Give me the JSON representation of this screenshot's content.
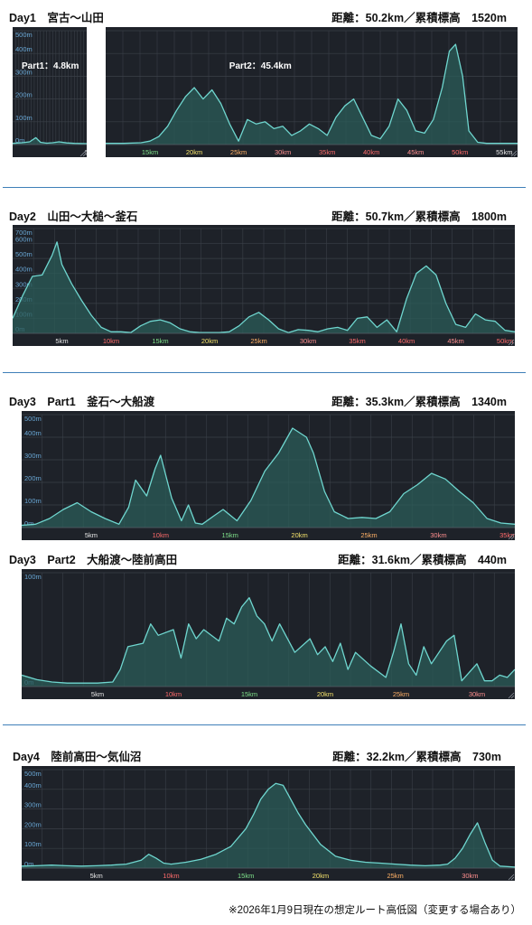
{
  "days": [
    {
      "title": "Day1　宮古〜山田",
      "stats": "距離：50.2km／累積標高　1520m"
    },
    {
      "title": "Day2　山田〜大槌〜釜石",
      "stats": "距離：50.7km／累積標高　1800m"
    },
    {
      "title": "Day3　Part1　釜石〜大船渡",
      "stats": "距離：35.3km／累積標高　1340m"
    },
    {
      "title": "Day3　Part2　大船渡〜陸前高田",
      "stats": "距離：31.6km／累積標高　440m"
    },
    {
      "title": "Day4　陸前高田〜気仙沼",
      "stats": "距離：32.2km／累積標高　730m"
    }
  ],
  "footnote": "※2026年1月9日現在の想定ルート高低図（変更する場合あり）",
  "colors": {
    "background": "#1e2229",
    "line": "#6fd6cf",
    "fill": "#2b5c58",
    "grid": "#3a4048",
    "label": "#6aa8d6",
    "divider": "#3f7fb8"
  },
  "chart_data": [
    {
      "type": "area",
      "title": "Day1 Part1",
      "annotation": "Part1：4.8km",
      "xlim": [
        0,
        4.8
      ],
      "ylim": [
        0,
        500
      ],
      "yticks": [
        0,
        100,
        200,
        300,
        400,
        500
      ],
      "ytick_labels": [
        "0m",
        "100m",
        "200m",
        "300m",
        "400m",
        "500m"
      ],
      "xticks": [
        4.8
      ],
      "xtick_labels": [
        "5"
      ],
      "x": [
        0,
        0.6,
        1.1,
        1.5,
        1.8,
        2.2,
        2.6,
        3.0,
        3.5,
        4.0,
        4.8
      ],
      "y": [
        5,
        8,
        12,
        30,
        10,
        6,
        8,
        12,
        7,
        5,
        4
      ]
    },
    {
      "type": "area",
      "title": "Day1 Part2",
      "annotation": "Part2：45.4km",
      "xlim": [
        10,
        56.5
      ],
      "ylim": [
        0,
        500
      ],
      "yticks": [
        0,
        100,
        200,
        300,
        400,
        500
      ],
      "xticks": [
        15,
        20,
        25,
        30,
        35,
        40,
        45,
        50,
        55
      ],
      "xtick_labels": [
        "15km",
        "20km",
        "25km",
        "30km",
        "35km",
        "40km",
        "45km",
        "50km",
        "55km"
      ],
      "x": [
        10,
        12,
        14,
        15,
        16,
        17,
        18,
        19,
        20,
        21,
        22,
        23,
        24,
        25,
        26,
        27,
        28,
        29,
        30,
        31,
        32,
        33,
        34,
        35,
        36,
        37,
        38,
        39,
        40,
        41,
        42,
        43,
        44,
        45,
        46,
        47,
        48,
        48.8,
        49.5,
        50.3,
        51,
        52,
        53,
        54,
        55,
        56.5
      ],
      "y": [
        5,
        5,
        8,
        15,
        35,
        80,
        150,
        210,
        250,
        200,
        240,
        180,
        90,
        15,
        110,
        90,
        100,
        70,
        80,
        40,
        60,
        90,
        70,
        40,
        120,
        170,
        200,
        120,
        40,
        25,
        80,
        200,
        150,
        60,
        50,
        110,
        250,
        410,
        440,
        300,
        60,
        10,
        5,
        5,
        5,
        5
      ]
    },
    {
      "type": "area",
      "title": "Day2",
      "xlim": [
        0,
        51
      ],
      "ylim": [
        0,
        700
      ],
      "yticks": [
        0,
        100,
        200,
        300,
        400,
        500,
        600,
        700
      ],
      "ytick_labels": [
        "0m",
        "100m",
        "200m",
        "300m",
        "400m",
        "500m",
        "600m",
        "700m"
      ],
      "xticks": [
        5,
        10,
        15,
        20,
        25,
        30,
        35,
        40,
        45,
        50
      ],
      "xtick_labels": [
        "5km",
        "10km",
        "15km",
        "20km",
        "25km",
        "30km",
        "35km",
        "40km",
        "45km",
        "50km"
      ],
      "x": [
        0,
        1,
        2,
        3,
        4,
        4.5,
        5,
        6,
        7,
        8,
        9,
        10,
        11,
        12,
        13,
        14,
        15,
        16,
        17,
        18,
        19,
        20,
        21,
        22,
        23,
        24,
        25,
        26,
        27,
        28,
        29,
        30,
        31,
        32,
        33,
        34,
        35,
        36,
        37,
        38,
        39,
        40,
        41,
        42,
        43,
        44,
        45,
        46,
        47,
        48,
        49,
        50,
        51
      ],
      "y": [
        100,
        250,
        380,
        390,
        520,
        610,
        460,
        330,
        220,
        120,
        40,
        10,
        10,
        5,
        50,
        80,
        90,
        70,
        30,
        10,
        5,
        5,
        5,
        10,
        50,
        110,
        140,
        90,
        30,
        5,
        25,
        20,
        10,
        30,
        40,
        20,
        100,
        110,
        40,
        90,
        10,
        230,
        400,
        450,
        390,
        200,
        60,
        40,
        130,
        90,
        80,
        20,
        10
      ]
    },
    {
      "type": "area",
      "title": "Day3 Part1",
      "xlim": [
        0,
        35.5
      ],
      "ylim": [
        0,
        500
      ],
      "yticks": [
        0,
        100,
        200,
        300,
        400,
        500
      ],
      "ytick_labels": [
        "0m",
        "100m",
        "200m",
        "300m",
        "400m",
        "500m"
      ],
      "xticks": [
        5,
        10,
        15,
        20,
        25,
        30,
        35
      ],
      "xtick_labels": [
        "5km",
        "10km",
        "15km",
        "20km",
        "25km",
        "30km",
        "35km"
      ],
      "x": [
        0,
        1,
        2,
        3,
        4,
        5,
        6,
        7,
        7.7,
        8.2,
        9,
        9.6,
        10,
        10.8,
        11.5,
        12,
        12.5,
        13,
        13.8,
        14.5,
        15.5,
        16.5,
        17.5,
        18.5,
        19.5,
        20.5,
        21,
        21.8,
        22.5,
        23.5,
        24.5,
        25.5,
        26.5,
        27.5,
        28.5,
        29.5,
        30.5,
        31.5,
        32.5,
        33.5,
        34.5,
        35.5
      ],
      "y": [
        10,
        15,
        40,
        80,
        110,
        70,
        40,
        15,
        90,
        210,
        140,
        260,
        320,
        130,
        30,
        100,
        20,
        15,
        50,
        80,
        30,
        120,
        250,
        330,
        440,
        400,
        330,
        160,
        70,
        40,
        45,
        40,
        70,
        150,
        190,
        240,
        215,
        160,
        110,
        40,
        20,
        15
      ]
    },
    {
      "type": "area",
      "title": "Day3 Part2",
      "xlim": [
        0,
        32.5
      ],
      "ylim": [
        0,
        100
      ],
      "yticks": [
        0,
        100
      ],
      "ytick_labels": [
        "0m",
        "100m"
      ],
      "xticks": [
        5,
        10,
        15,
        20,
        25,
        30
      ],
      "xtick_labels": [
        "5km",
        "10km",
        "15km",
        "20km",
        "25km",
        "30km"
      ],
      "x": [
        0,
        1,
        2,
        3,
        4,
        5,
        6,
        6.5,
        7,
        8,
        8.5,
        9,
        10,
        10.5,
        11,
        11.5,
        12,
        13,
        13.5,
        14,
        14.5,
        15,
        15.5,
        16,
        16.5,
        17,
        18,
        19,
        19.5,
        20,
        20.5,
        21,
        21.5,
        22,
        23,
        24,
        24.5,
        25,
        25.5,
        26,
        26.5,
        27,
        28,
        28.5,
        29,
        30,
        30.5,
        31,
        31.5,
        32,
        32.5
      ],
      "y": [
        10,
        6,
        4,
        3,
        3,
        3,
        4,
        15,
        35,
        38,
        55,
        45,
        50,
        25,
        55,
        42,
        50,
        40,
        60,
        55,
        70,
        78,
        62,
        55,
        40,
        55,
        30,
        42,
        28,
        35,
        22,
        38,
        15,
        30,
        18,
        8,
        30,
        55,
        20,
        10,
        35,
        20,
        40,
        45,
        5,
        20,
        5,
        5,
        10,
        8,
        15
      ]
    },
    {
      "type": "area",
      "title": "Day4",
      "xlim": [
        0,
        33
      ],
      "ylim": [
        0,
        500
      ],
      "yticks": [
        0,
        100,
        200,
        300,
        400,
        500
      ],
      "ytick_labels": [
        "0m",
        "100m",
        "200m",
        "300m",
        "400m",
        "500m"
      ],
      "xticks": [
        5,
        10,
        15,
        20,
        25,
        30
      ],
      "xtick_labels": [
        "5km",
        "10km",
        "15km",
        "20km",
        "25km",
        "30km"
      ],
      "x": [
        0,
        1,
        2,
        3,
        4,
        5,
        6,
        7,
        8,
        8.5,
        9,
        9.5,
        10,
        11,
        12,
        13,
        14,
        15,
        15.5,
        16,
        16.5,
        17,
        17.5,
        18,
        18.5,
        19,
        20,
        21,
        22,
        23,
        24,
        25,
        26,
        27,
        28,
        28.5,
        29,
        29.5,
        30,
        30.5,
        31,
        31.5,
        32,
        33
      ],
      "y": [
        10,
        12,
        15,
        12,
        10,
        12,
        15,
        20,
        40,
        70,
        50,
        25,
        20,
        30,
        45,
        70,
        110,
        200,
        270,
        350,
        400,
        430,
        420,
        350,
        280,
        220,
        120,
        60,
        40,
        30,
        25,
        20,
        15,
        12,
        15,
        20,
        50,
        100,
        170,
        230,
        130,
        40,
        10,
        5
      ]
    }
  ]
}
